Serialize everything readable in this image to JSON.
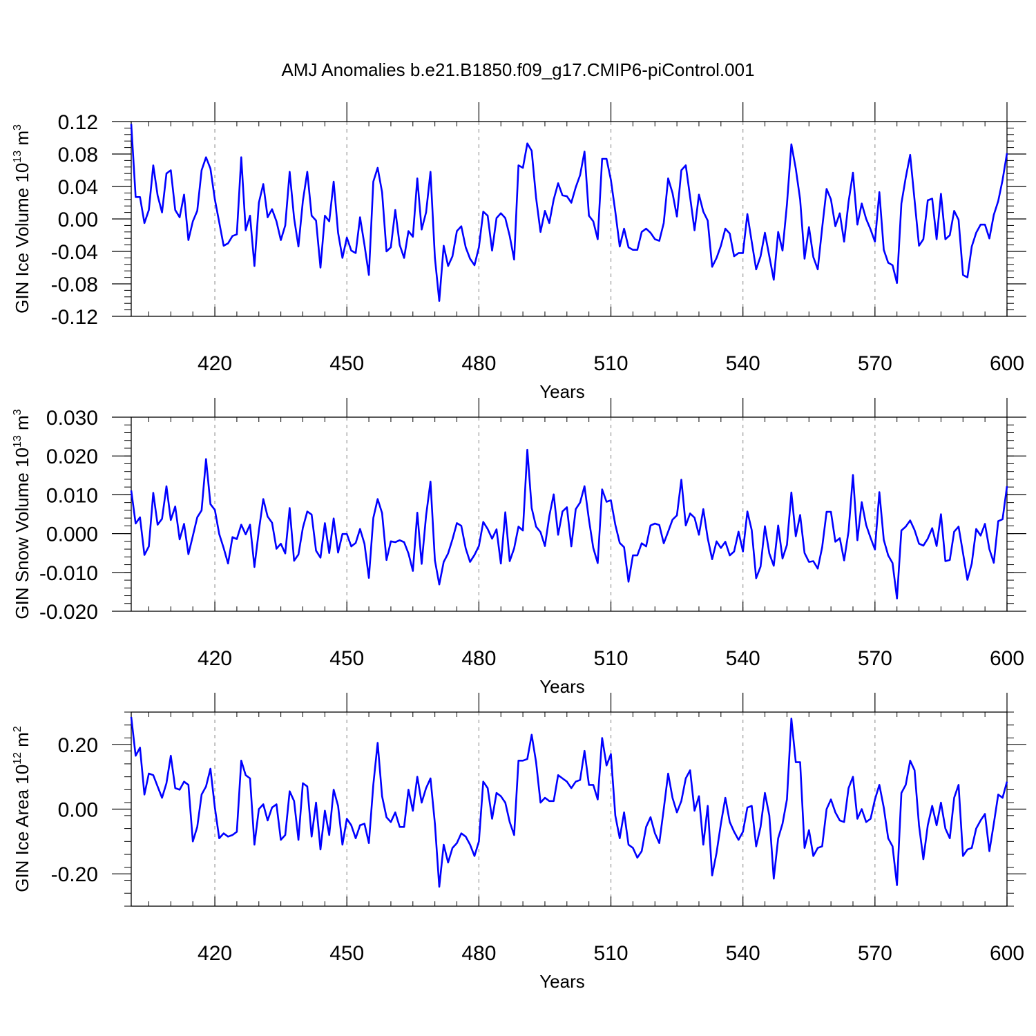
{
  "title": "AMJ Anomalies b.e21.B1850.f09_g17.CMIP6-piControl.001",
  "colors": {
    "series": "#0000ff",
    "axes": "#000000",
    "grid": "#999999"
  },
  "chart_data": [
    {
      "type": "line",
      "ylabel": "GIN Ice Volume 10",
      "ylabel_exp": "13",
      "ylabel_unit": " m",
      "ylabel_unit_exp": "3",
      "xlabel": "Years",
      "xlim": [
        401,
        600
      ],
      "ylim": [
        -0.12,
        0.12
      ],
      "xticks": [
        420,
        450,
        480,
        510,
        540,
        570,
        600
      ],
      "xtick_labels": [
        "420",
        "450",
        "480",
        "510",
        "540",
        "570",
        "600"
      ],
      "yticks": [
        -0.12,
        -0.08,
        -0.04,
        0.0,
        0.04,
        0.08,
        0.12
      ],
      "ytick_labels": [
        "-0.12",
        "-0.08",
        "-0.04",
        "0.00",
        "0.04",
        "0.08",
        "0.12"
      ],
      "grid": "vertical dashed at major x ticks",
      "series": [
        {
          "color": "#0000ff",
          "x_start": 401,
          "values": [
            0.117,
            0.027,
            0.027,
            -0.005,
            0.011,
            0.066,
            0.029,
            0.008,
            0.056,
            0.06,
            0.011,
            0.002,
            0.03,
            -0.026,
            -0.003,
            0.01,
            0.06,
            0.076,
            0.062,
            0.024,
            -0.004,
            -0.033,
            -0.03,
            -0.021,
            -0.019,
            0.076,
            -0.014,
            0.004,
            -0.058,
            0.02,
            0.043,
            0.002,
            0.012,
            -0.003,
            -0.026,
            -0.008,
            0.058,
            0.001,
            -0.034,
            0.022,
            0.058,
            0.004,
            -0.002,
            -0.06,
            0.004,
            -0.003,
            0.046,
            -0.017,
            -0.048,
            -0.023,
            -0.039,
            -0.042,
            0.002,
            -0.032,
            -0.069,
            0.046,
            0.063,
            0.033,
            -0.04,
            -0.035,
            0.011,
            -0.032,
            -0.048,
            -0.015,
            -0.022,
            0.05,
            -0.013,
            0.008,
            0.058,
            -0.048,
            -0.101,
            -0.033,
            -0.058,
            -0.046,
            -0.015,
            -0.009,
            -0.035,
            -0.049,
            -0.057,
            -0.035,
            0.009,
            0.004,
            -0.039,
            0.001,
            0.007,
            0.001,
            -0.021,
            -0.05,
            0.066,
            0.063,
            0.093,
            0.084,
            0.026,
            -0.016,
            0.01,
            -0.005,
            0.024,
            0.044,
            0.029,
            0.028,
            0.02,
            0.039,
            0.054,
            0.083,
            0.004,
            -0.003,
            -0.025,
            0.074,
            0.074,
            0.048,
            0.009,
            -0.034,
            -0.012,
            -0.035,
            -0.038,
            -0.038,
            -0.016,
            -0.012,
            -0.017,
            -0.025,
            -0.027,
            -0.005,
            0.05,
            0.032,
            0.003,
            0.06,
            0.066,
            0.027,
            -0.014,
            0.03,
            0.009,
            -0.002,
            -0.059,
            -0.048,
            -0.033,
            -0.012,
            -0.018,
            -0.046,
            -0.042,
            -0.042,
            0.006,
            -0.028,
            -0.062,
            -0.046,
            -0.017,
            -0.046,
            -0.075,
            -0.016,
            -0.039,
            0.018,
            0.092,
            0.062,
            0.024,
            -0.049,
            -0.01,
            -0.047,
            -0.062,
            -0.011,
            0.037,
            0.024,
            -0.009,
            0.007,
            -0.028,
            0.021,
            0.057,
            -0.007,
            0.019,
            0.0,
            -0.013,
            -0.028,
            0.033,
            -0.038,
            -0.054,
            -0.057,
            -0.079,
            0.019,
            0.051,
            0.079,
            0.023,
            -0.033,
            -0.025,
            0.023,
            0.025,
            -0.025,
            0.031,
            -0.025,
            -0.02,
            0.01,
            -0.001,
            -0.069,
            -0.072,
            -0.034,
            -0.017,
            -0.007,
            -0.007,
            -0.024,
            0.005,
            0.022,
            0.048,
            0.081
          ]
        }
      ]
    },
    {
      "type": "line",
      "ylabel": "GIN Snow Volume 10",
      "ylabel_exp": "13",
      "ylabel_unit": " m",
      "ylabel_unit_exp": "3",
      "xlabel": "Years",
      "xlim": [
        401,
        600
      ],
      "ylim": [
        -0.02,
        0.03
      ],
      "xticks": [
        420,
        450,
        480,
        510,
        540,
        570,
        600
      ],
      "xtick_labels": [
        "420",
        "450",
        "480",
        "510",
        "540",
        "570",
        "600"
      ],
      "yticks": [
        -0.02,
        -0.01,
        0.0,
        0.01,
        0.02,
        0.03
      ],
      "ytick_labels": [
        "-0.020",
        "-0.010",
        "0.000",
        "0.010",
        "0.020",
        "0.030"
      ],
      "grid": "vertical dashed at major x ticks",
      "series": [
        {
          "color": "#0000ff",
          "x_start": 401,
          "values": [
            0.0111,
            0.0026,
            0.0042,
            -0.0055,
            -0.0033,
            0.0105,
            0.0023,
            0.0038,
            0.0122,
            0.0035,
            0.007,
            -0.0015,
            0.0025,
            -0.0053,
            -0.0006,
            0.0042,
            0.006,
            0.0192,
            0.0076,
            0.0061,
            -0.0001,
            -0.0037,
            -0.0077,
            -0.0009,
            -0.0014,
            0.0023,
            -0.0002,
            0.0023,
            -0.0086,
            0.0008,
            0.0089,
            0.0044,
            0.0028,
            -0.0039,
            -0.0026,
            -0.0051,
            0.0066,
            -0.007,
            -0.0054,
            0.0015,
            0.0057,
            0.0049,
            -0.0044,
            -0.0062,
            0.0027,
            -0.005,
            0.0039,
            -0.0049,
            -0.0001,
            -0.0001,
            -0.0033,
            -0.0024,
            0.0012,
            -0.0026,
            -0.0114,
            0.004,
            0.0089,
            0.0053,
            -0.0068,
            -0.002,
            -0.0022,
            -0.0017,
            -0.0022,
            -0.0051,
            -0.0096,
            0.0054,
            -0.0078,
            0.0046,
            0.0134,
            -0.0069,
            -0.0131,
            -0.0073,
            -0.0051,
            -0.0015,
            0.0027,
            0.002,
            -0.0038,
            -0.0073,
            -0.0055,
            -0.0032,
            0.003,
            0.0012,
            -0.0013,
            0.0011,
            -0.0077,
            0.0055,
            -0.0071,
            -0.0038,
            0.0018,
            0.0008,
            0.0216,
            0.0066,
            0.0018,
            0.0004,
            -0.0032,
            0.0045,
            0.0101,
            -0.0003,
            0.0057,
            0.0068,
            -0.0033,
            0.0063,
            0.008,
            0.0122,
            0.0036,
            -0.0037,
            -0.0076,
            0.0114,
            0.0082,
            0.0086,
            0.0023,
            -0.0024,
            -0.0035,
            -0.0124,
            -0.0056,
            -0.0056,
            -0.0025,
            -0.0033,
            0.0021,
            0.0026,
            0.0022,
            -0.0025,
            0.0005,
            0.0036,
            0.0047,
            0.0139,
            0.0021,
            0.0052,
            0.0041,
            -0.0003,
            0.0063,
            -0.0012,
            -0.0066,
            -0.002,
            -0.0037,
            -0.0021,
            -0.0056,
            -0.0046,
            0.0005,
            -0.0046,
            0.0057,
            0.0009,
            -0.0115,
            -0.0085,
            0.0019,
            -0.0051,
            -0.0083,
            0.0021,
            -0.0064,
            -0.0029,
            0.0106,
            -0.0007,
            0.0048,
            -0.005,
            -0.0073,
            -0.0071,
            -0.009,
            -0.0035,
            0.0056,
            0.0056,
            -0.0021,
            -0.0012,
            -0.0069,
            0.0006,
            0.0151,
            -0.0017,
            0.0081,
            0.0022,
            -0.0011,
            -0.0041,
            0.0107,
            -0.0016,
            -0.0056,
            -0.0076,
            -0.0167,
            0.0008,
            0.0018,
            0.0034,
            0.0009,
            -0.0026,
            -0.0031,
            -0.0013,
            0.0014,
            -0.0032,
            0.005,
            -0.0071,
            -0.0068,
            0.0005,
            0.0018,
            -0.005,
            -0.0119,
            -0.0077,
            0.0012,
            -0.0005,
            0.0025,
            -0.004,
            -0.0075,
            0.0032,
            0.0037,
            0.0122
          ]
        }
      ]
    },
    {
      "type": "line",
      "ylabel": "GIN Ice Area 10",
      "ylabel_exp": "12",
      "ylabel_unit": " m",
      "ylabel_unit_exp": "2",
      "xlabel": "Years",
      "xlim": [
        401,
        600
      ],
      "ylim": [
        -0.3,
        0.3
      ],
      "xticks": [
        420,
        450,
        480,
        510,
        540,
        570,
        600
      ],
      "xtick_labels": [
        "420",
        "450",
        "480",
        "510",
        "540",
        "570",
        "600"
      ],
      "yticks": [
        -0.2,
        0.0,
        0.2
      ],
      "ytick_labels": [
        "-0.20",
        "0.00",
        "0.20"
      ],
      "grid": "vertical dashed at major x ticks",
      "series": [
        {
          "color": "#0000ff",
          "x_start": 401,
          "values": [
            0.285,
            0.165,
            0.19,
            0.045,
            0.11,
            0.105,
            0.07,
            0.035,
            0.08,
            0.165,
            0.065,
            0.06,
            0.085,
            0.075,
            -0.1,
            -0.055,
            0.045,
            0.07,
            0.125,
            0.005,
            -0.09,
            -0.075,
            -0.085,
            -0.08,
            -0.07,
            0.15,
            0.105,
            0.095,
            -0.11,
            0.0,
            0.015,
            -0.035,
            0.005,
            0.015,
            -0.095,
            -0.08,
            0.055,
            0.025,
            -0.095,
            0.08,
            0.07,
            -0.085,
            0.02,
            -0.125,
            -0.005,
            -0.08,
            0.06,
            0.01,
            -0.11,
            -0.03,
            -0.05,
            -0.09,
            -0.05,
            -0.045,
            -0.105,
            0.075,
            0.205,
            0.04,
            -0.025,
            -0.04,
            -0.01,
            -0.055,
            -0.055,
            0.06,
            -0.005,
            0.1,
            0.02,
            0.065,
            0.095,
            -0.045,
            -0.24,
            -0.11,
            -0.165,
            -0.12,
            -0.105,
            -0.075,
            -0.085,
            -0.11,
            -0.145,
            -0.1,
            0.085,
            0.065,
            -0.03,
            0.05,
            0.04,
            0.02,
            -0.04,
            -0.08,
            0.15,
            0.15,
            0.155,
            0.23,
            0.145,
            0.02,
            0.035,
            0.025,
            0.025,
            0.105,
            0.095,
            0.085,
            0.065,
            0.085,
            0.09,
            0.18,
            0.075,
            0.075,
            0.03,
            0.22,
            0.135,
            0.17,
            -0.02,
            -0.09,
            -0.01,
            -0.11,
            -0.12,
            -0.15,
            -0.13,
            -0.055,
            -0.025,
            -0.075,
            -0.105,
            0.0,
            0.11,
            0.035,
            -0.01,
            0.025,
            0.095,
            0.12,
            -0.005,
            0.04,
            -0.11,
            0.01,
            -0.205,
            -0.135,
            -0.045,
            0.035,
            -0.04,
            -0.07,
            -0.095,
            -0.07,
            0.005,
            0.01,
            -0.115,
            -0.055,
            0.05,
            -0.02,
            -0.215,
            -0.09,
            -0.045,
            0.03,
            0.28,
            0.145,
            0.145,
            -0.12,
            -0.065,
            -0.145,
            -0.12,
            -0.115,
            0.0,
            0.03,
            -0.01,
            -0.035,
            -0.04,
            0.065,
            0.1,
            -0.03,
            0.0,
            -0.04,
            -0.03,
            0.03,
            0.075,
            0.005,
            -0.09,
            -0.115,
            -0.235,
            0.05,
            0.075,
            0.15,
            0.12,
            -0.05,
            -0.155,
            -0.05,
            0.01,
            -0.05,
            0.02,
            -0.06,
            -0.09,
            0.035,
            0.075,
            -0.145,
            -0.125,
            -0.12,
            -0.06,
            -0.035,
            -0.015,
            -0.13,
            -0.045,
            0.045,
            0.035,
            0.085
          ]
        }
      ]
    }
  ]
}
